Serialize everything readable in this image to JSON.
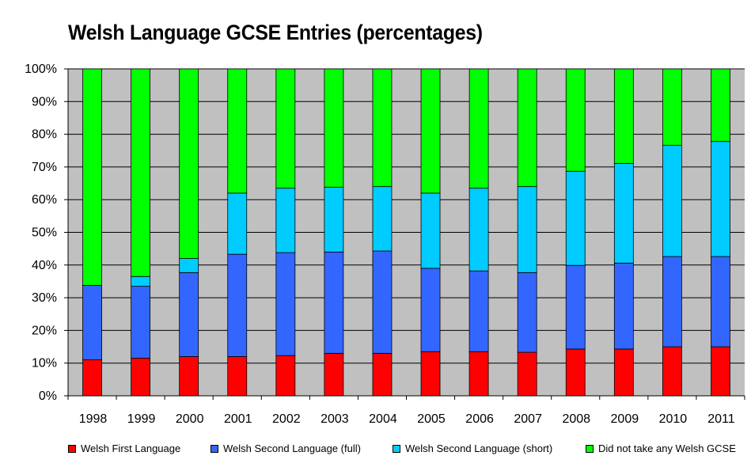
{
  "chart_data": {
    "type": "bar",
    "stacked": true,
    "title": "Welsh Language GCSE Entries (percentages)",
    "categories": [
      "1998",
      "1999",
      "2000",
      "2001",
      "2002",
      "2003",
      "2004",
      "2005",
      "2006",
      "2007",
      "2008",
      "2009",
      "2010",
      "2011"
    ],
    "ylim": [
      0,
      100
    ],
    "yticks": [
      "0%",
      "10%",
      "20%",
      "30%",
      "40%",
      "50%",
      "60%",
      "70%",
      "80%",
      "90%",
      "100%"
    ],
    "grid": true,
    "legend_position": "bottom",
    "series": [
      {
        "name": "Welsh First Language",
        "color": "#ff0000",
        "values": [
          11,
          11.5,
          12,
          12,
          12.3,
          13,
          13,
          13.5,
          13.5,
          13.3,
          14.3,
          14.3,
          15,
          15
        ]
      },
      {
        "name": "Welsh Second Language (full)",
        "color": "#3366ff",
        "values": [
          22.8,
          22,
          25.7,
          31.3,
          31.5,
          31,
          31.3,
          25.5,
          24.7,
          24.4,
          25.6,
          26.3,
          27.6,
          27.6
        ]
      },
      {
        "name": "Welsh Second Language (short)",
        "color": "#00ccff",
        "values": [
          0,
          3,
          4.3,
          18.7,
          19.7,
          19.8,
          19.7,
          23,
          25.3,
          26.3,
          28.8,
          30.5,
          34,
          35.2
        ]
      },
      {
        "name": "Did not take any Welsh GCSE",
        "color": "#00ff00",
        "values": [
          66.2,
          63.5,
          58,
          38,
          36.5,
          36.2,
          36,
          38,
          36.5,
          36,
          31.3,
          28.9,
          23.4,
          22.2
        ]
      }
    ]
  }
}
